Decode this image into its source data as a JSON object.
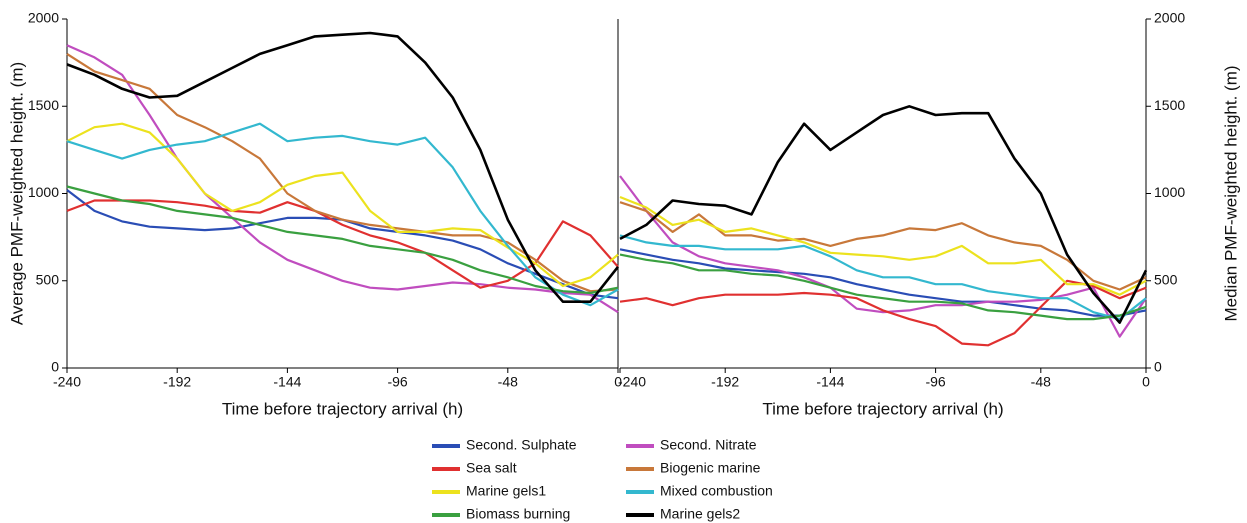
{
  "chart_data": [
    {
      "type": "line",
      "xlabel": "Time before trajectory arrival  (h)",
      "ylabel": "Average PMF-weighted height. (m)",
      "x": [
        -240,
        -228,
        -216,
        -204,
        -192,
        -180,
        -168,
        -156,
        -144,
        -132,
        -120,
        -108,
        -96,
        -84,
        -72,
        -60,
        -48,
        -36,
        -24,
        -12,
        0
      ],
      "xlim": [
        -240,
        0
      ],
      "xticks": [
        -240,
        -192,
        -144,
        -96,
        -48,
        0
      ],
      "ylim": [
        0,
        2000
      ],
      "yticks": [
        0,
        500,
        1000,
        1500,
        2000
      ],
      "series": [
        {
          "name": "Second. Sulphate",
          "color": "#2a4db5",
          "values": [
            1020,
            900,
            840,
            810,
            800,
            790,
            800,
            830,
            860,
            860,
            850,
            800,
            780,
            760,
            730,
            680,
            600,
            540,
            480,
            420,
            400
          ]
        },
        {
          "name": "Second. Nitrate",
          "color": "#c04dbf",
          "values": [
            1850,
            1780,
            1680,
            1450,
            1200,
            1000,
            860,
            720,
            620,
            560,
            500,
            460,
            450,
            470,
            490,
            480,
            460,
            450,
            430,
            420,
            320
          ]
        },
        {
          "name": "Sea salt",
          "color": "#e03030",
          "values": [
            900,
            960,
            960,
            960,
            950,
            930,
            900,
            890,
            950,
            900,
            820,
            760,
            720,
            660,
            560,
            460,
            500,
            600,
            840,
            760,
            580
          ]
        },
        {
          "name": "Biogenic marine",
          "color": "#c8783a",
          "values": [
            1800,
            1700,
            1650,
            1600,
            1450,
            1380,
            1300,
            1200,
            1000,
            900,
            850,
            820,
            800,
            780,
            760,
            760,
            720,
            620,
            500,
            440,
            450
          ]
        },
        {
          "name": "Marine gels1",
          "color": "#ece21e",
          "values": [
            1300,
            1380,
            1400,
            1350,
            1200,
            1000,
            900,
            950,
            1050,
            1100,
            1120,
            900,
            780,
            780,
            800,
            790,
            690,
            600,
            470,
            520,
            650
          ]
        },
        {
          "name": "Mixed combustion",
          "color": "#33b8cf",
          "values": [
            1300,
            1250,
            1200,
            1250,
            1280,
            1300,
            1350,
            1400,
            1300,
            1320,
            1330,
            1300,
            1280,
            1320,
            1150,
            900,
            700,
            520,
            420,
            360,
            450
          ]
        },
        {
          "name": "Biomass burning",
          "color": "#3aa040",
          "values": [
            1040,
            1000,
            960,
            940,
            900,
            880,
            860,
            820,
            780,
            760,
            740,
            700,
            680,
            660,
            620,
            560,
            520,
            470,
            440,
            430,
            460
          ]
        },
        {
          "name": "Marine gels2",
          "color": "#000000",
          "values": [
            1740,
            1680,
            1600,
            1550,
            1560,
            1640,
            1720,
            1800,
            1850,
            1900,
            1910,
            1920,
            1900,
            1750,
            1550,
            1250,
            850,
            560,
            380,
            380,
            580
          ]
        }
      ]
    },
    {
      "type": "line",
      "xlabel": "Time before trajectory arrival  (h)",
      "y2label": "Median PMF-weighted height. (m)",
      "x": [
        -240,
        -228,
        -216,
        -204,
        -192,
        -180,
        -168,
        -156,
        -144,
        -132,
        -120,
        -108,
        -96,
        -84,
        -72,
        -60,
        -48,
        -36,
        -24,
        -12,
        0
      ],
      "xlim": [
        -240,
        0
      ],
      "xticks": [
        -240,
        -192,
        -144,
        -96,
        -48,
        0
      ],
      "y2lim": [
        0,
        2000
      ],
      "y2ticks": [
        0,
        500,
        1000,
        1500,
        2000
      ],
      "series": [
        {
          "color": "#2a4db5",
          "axis": "y2",
          "values": [
            680,
            650,
            620,
            600,
            570,
            560,
            550,
            540,
            520,
            480,
            450,
            420,
            400,
            380,
            380,
            360,
            340,
            330,
            300,
            300,
            330
          ]
        },
        {
          "color": "#c04dbf",
          "axis": "y2",
          "values": [
            1100,
            900,
            720,
            640,
            600,
            580,
            560,
            520,
            460,
            340,
            320,
            330,
            360,
            360,
            380,
            380,
            390,
            420,
            460,
            180,
            400
          ]
        },
        {
          "color": "#e03030",
          "axis": "y2",
          "values": [
            380,
            400,
            360,
            400,
            420,
            420,
            420,
            430,
            420,
            400,
            330,
            280,
            240,
            140,
            130,
            200,
            350,
            500,
            470,
            400,
            460
          ]
        },
        {
          "color": "#c8783a",
          "axis": "y2",
          "values": [
            950,
            900,
            780,
            880,
            760,
            760,
            730,
            740,
            700,
            740,
            760,
            800,
            790,
            830,
            760,
            720,
            700,
            620,
            500,
            450,
            520
          ]
        },
        {
          "color": "#ece21e",
          "axis": "y2",
          "values": [
            980,
            920,
            820,
            850,
            780,
            800,
            760,
            720,
            660,
            650,
            640,
            620,
            640,
            700,
            600,
            600,
            620,
            480,
            480,
            420,
            500
          ]
        },
        {
          "color": "#33b8cf",
          "axis": "y2",
          "values": [
            760,
            720,
            700,
            700,
            680,
            680,
            680,
            700,
            640,
            560,
            520,
            520,
            480,
            480,
            440,
            420,
            400,
            400,
            320,
            280,
            400
          ]
        },
        {
          "color": "#3aa040",
          "axis": "y2",
          "values": [
            650,
            620,
            600,
            560,
            560,
            540,
            530,
            500,
            460,
            420,
            400,
            380,
            380,
            370,
            330,
            320,
            300,
            280,
            280,
            300,
            350
          ]
        },
        {
          "color": "#000000",
          "axis": "y2",
          "values": [
            740,
            820,
            960,
            940,
            930,
            880,
            1180,
            1400,
            1250,
            1350,
            1450,
            1500,
            1450,
            1460,
            1460,
            1200,
            1000,
            650,
            430,
            260,
            560
          ]
        }
      ]
    }
  ]
}
